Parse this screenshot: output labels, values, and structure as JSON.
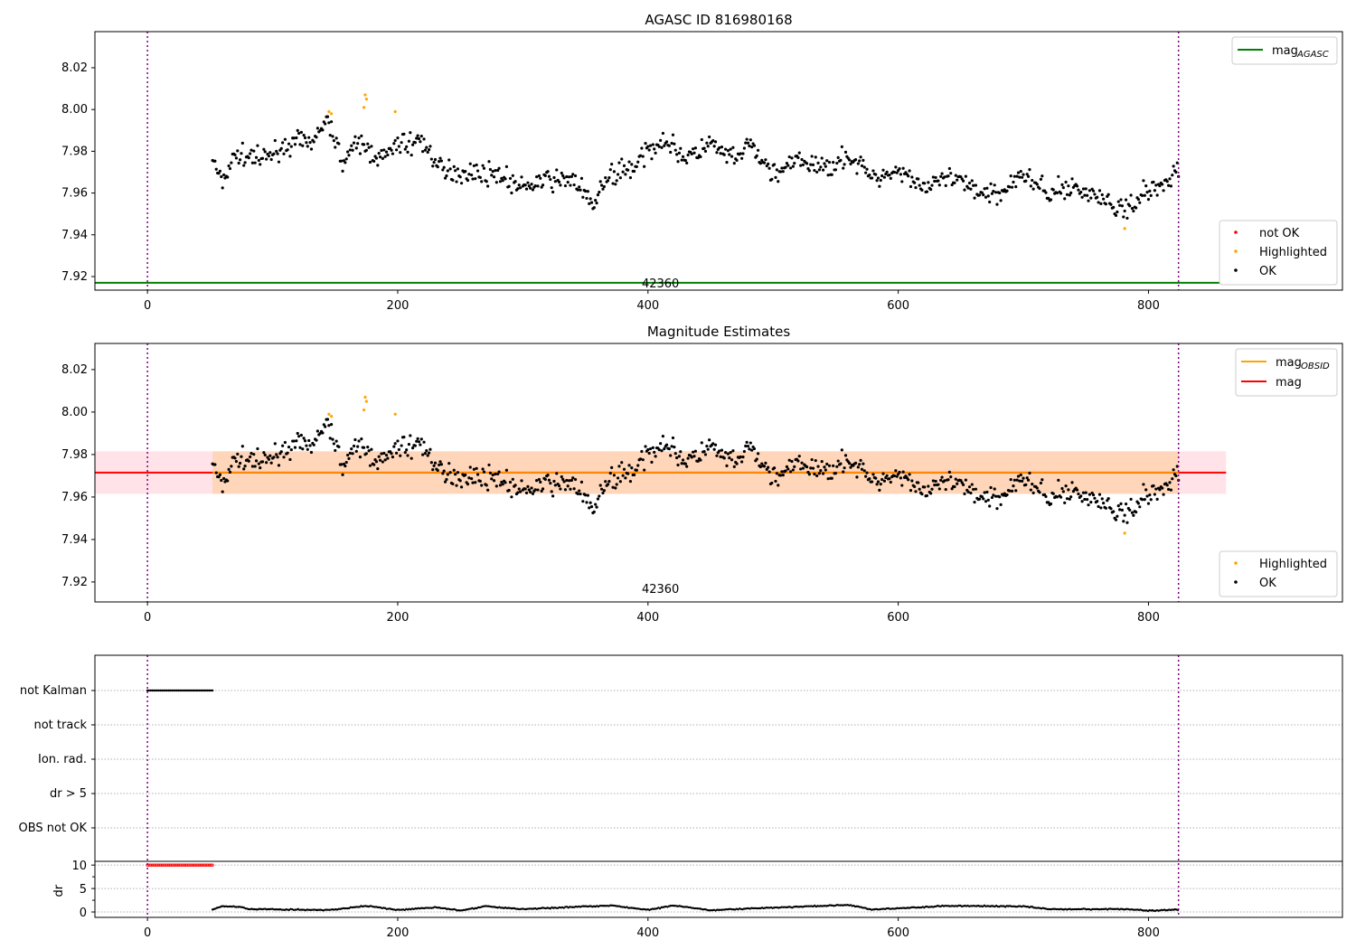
{
  "chart_data": [
    {
      "type": "scatter",
      "title": "AGASC ID 816980168",
      "xlim": [
        -42,
        955
      ],
      "ylim": [
        7.9135,
        8.0373
      ],
      "xticks": [
        0,
        200,
        400,
        600,
        800
      ],
      "yticks": [
        7.92,
        7.94,
        7.96,
        7.98,
        8.0,
        8.02
      ],
      "ytick_labels": [
        "7.92",
        "7.94",
        "7.96",
        "7.98",
        "8.00",
        "8.02"
      ],
      "xtick_labels": [
        "0",
        "200",
        "400",
        "600",
        "800"
      ],
      "mag_agasc": 7.917,
      "obsid_label": "42360",
      "obsid_label_pos": [
        410,
        7.9165
      ],
      "obs_bounds": [
        0,
        824
      ],
      "legend_lines": [
        {
          "label": "mag",
          "sub": "AGASC",
          "color": "#008000"
        }
      ],
      "legend_points": [
        {
          "label": "not OK",
          "color": "#ff0000"
        },
        {
          "label": "Highlighted",
          "color": "#ffa500"
        },
        {
          "label": "OK",
          "color": "#000000"
        }
      ]
    },
    {
      "type": "scatter",
      "title": "Magnitude Estimates",
      "xlim": [
        -42,
        955
      ],
      "ylim": [
        7.9106,
        8.0323
      ],
      "xticks": [
        0,
        200,
        400,
        600,
        800
      ],
      "yticks": [
        7.92,
        7.94,
        7.96,
        7.98,
        8.0,
        8.02
      ],
      "ytick_labels": [
        "7.92",
        "7.94",
        "7.96",
        "7.98",
        "8.00",
        "8.02"
      ],
      "xtick_labels": [
        "0",
        "200",
        "400",
        "600",
        "800"
      ],
      "mag": 7.9715,
      "mag_band": [
        7.9615,
        7.9815
      ],
      "band_extent": [
        -42,
        862
      ],
      "obsid_band_extent": [
        52,
        824
      ],
      "obsid_label": "42360",
      "obsid_label_pos": [
        410,
        7.9165
      ],
      "legend_lines": [
        {
          "label": "mag",
          "sub": "OBSID",
          "color": "#ffa500"
        },
        {
          "label": "mag",
          "sub": "",
          "color": "#ff0000"
        }
      ],
      "legend_points": [
        {
          "label": "Highlighted",
          "color": "#ffa500"
        },
        {
          "label": "OK",
          "color": "#000000"
        }
      ]
    },
    {
      "type": "scatter",
      "categories": [
        "not Kalman",
        "not track",
        "Ion. rad.",
        "dr > 5",
        "OBS not OK"
      ],
      "flag_ranges": {
        "not Kalman": [
          0,
          52
        ]
      },
      "dr_ylabel": "dr",
      "dr_yticks": [
        0,
        5,
        10
      ],
      "dr_ytick_labels": [
        "0",
        "5",
        "10"
      ],
      "dr_ylim": [
        -1.15,
        10.8
      ],
      "dr_high": {
        "range": [
          0,
          52
        ],
        "value": 10,
        "color": "#ff0000"
      },
      "xtick_labels": [
        "0",
        "200",
        "400",
        "600",
        "800"
      ],
      "xticks": [
        0,
        200,
        400,
        600,
        800
      ],
      "dr_trend": [
        [
          52,
          0.5
        ],
        [
          60,
          1.2
        ],
        [
          75,
          1.1
        ],
        [
          80,
          0.6
        ],
        [
          100,
          0.6
        ],
        [
          130,
          0.4
        ],
        [
          150,
          0.5
        ],
        [
          175,
          1.3
        ],
        [
          200,
          0.4
        ],
        [
          230,
          1.0
        ],
        [
          250,
          0.3
        ],
        [
          270,
          1.2
        ],
        [
          300,
          0.6
        ],
        [
          370,
          1.4
        ],
        [
          400,
          0.4
        ],
        [
          420,
          1.4
        ],
        [
          450,
          0.4
        ],
        [
          530,
          1.2
        ],
        [
          560,
          1.5
        ],
        [
          580,
          0.5
        ],
        [
          640,
          1.3
        ],
        [
          700,
          1.2
        ],
        [
          720,
          0.6
        ],
        [
          780,
          0.6
        ],
        [
          800,
          0.3
        ],
        [
          824,
          0.5
        ]
      ]
    }
  ],
  "mag_trend": [
    [
      52,
      7.976
    ],
    [
      60,
      7.966
    ],
    [
      70,
      7.979
    ],
    [
      90,
      7.976
    ],
    [
      110,
      7.983
    ],
    [
      130,
      7.985
    ],
    [
      145,
      7.995
    ],
    [
      155,
      7.976
    ],
    [
      170,
      7.984
    ],
    [
      185,
      7.976
    ],
    [
      200,
      7.983
    ],
    [
      220,
      7.985
    ],
    [
      235,
      7.97
    ],
    [
      260,
      7.97
    ],
    [
      280,
      7.969
    ],
    [
      300,
      7.962
    ],
    [
      320,
      7.966
    ],
    [
      340,
      7.967
    ],
    [
      355,
      7.955
    ],
    [
      370,
      7.968
    ],
    [
      390,
      7.973
    ],
    [
      410,
      7.986
    ],
    [
      430,
      7.977
    ],
    [
      450,
      7.983
    ],
    [
      470,
      7.975
    ],
    [
      480,
      7.984
    ],
    [
      500,
      7.969
    ],
    [
      520,
      7.975
    ],
    [
      540,
      7.972
    ],
    [
      560,
      7.978
    ],
    [
      580,
      7.967
    ],
    [
      600,
      7.972
    ],
    [
      620,
      7.962
    ],
    [
      640,
      7.967
    ],
    [
      660,
      7.962
    ],
    [
      680,
      7.96
    ],
    [
      700,
      7.969
    ],
    [
      720,
      7.96
    ],
    [
      740,
      7.963
    ],
    [
      760,
      7.958
    ],
    [
      780,
      7.951
    ],
    [
      795,
      7.96
    ],
    [
      810,
      7.963
    ],
    [
      824,
      7.974
    ]
  ],
  "highlighted": [
    [
      145,
      7.999
    ],
    [
      147,
      7.998
    ],
    [
      173,
      8.001
    ],
    [
      174,
      8.007
    ],
    [
      175,
      8.005
    ],
    [
      198,
      7.999
    ],
    [
      781,
      7.943
    ]
  ]
}
